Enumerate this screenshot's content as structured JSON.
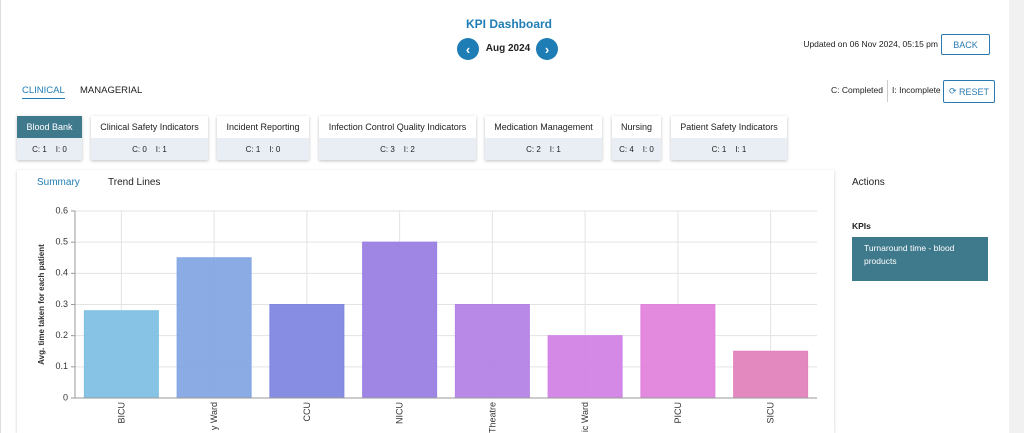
{
  "header": {
    "title": "KPI Dashboard",
    "period": "Aug 2024",
    "updated": "Updated on 06 Nov 2024, 05:15 pm",
    "back": "BACK"
  },
  "tabs": [
    "CLINICAL",
    "MANAGERIAL"
  ],
  "legend": {
    "completed": "C: Completed",
    "incomplete": "I: Incomplete",
    "reset": "RESET"
  },
  "cards": [
    {
      "label": "Blood Bank",
      "completed": "C: 1",
      "incomplete": "I: 0"
    },
    {
      "label": "Clinical Safety Indicators",
      "completed": "C: 0",
      "incomplete": "I: 1"
    },
    {
      "label": "Incident Reporting",
      "completed": "C: 1",
      "incomplete": "I: 0"
    },
    {
      "label": "Infection Control Quality Indicators",
      "completed": "C: 3",
      "incomplete": "I: 2"
    },
    {
      "label": "Medication Management",
      "completed": "C: 2",
      "incomplete": "I: 1"
    },
    {
      "label": "Nursing",
      "completed": "C: 4",
      "incomplete": "I: 0"
    },
    {
      "label": "Patient Safety Indicators",
      "completed": "C: 1",
      "incomplete": "I: 1"
    }
  ],
  "chart_tabs": [
    "Summary",
    "Trend Lines"
  ],
  "actions": {
    "title": "Actions",
    "section": "KPIs",
    "item": "Turnaround time - blood products"
  },
  "chart_data": {
    "type": "bar",
    "ylabel": "Avg. time taken for each patient",
    "categories": [
      "BICU",
      "y Ward",
      "CCU",
      "NICU",
      "Theatre",
      "ic Ward",
      "PICU",
      "SICU"
    ],
    "values": [
      0.28,
      0.45,
      0.3,
      0.5,
      0.3,
      0.2,
      0.3,
      0.15
    ],
    "colors": [
      "#7fc0e4",
      "#84a7e3",
      "#7f87e1",
      "#9a80e4",
      "#b583e6",
      "#d283e6",
      "#e283dc",
      "#e283bd"
    ],
    "ylim": [
      0,
      0.6
    ],
    "yticks": [
      0,
      0.1,
      0.2,
      0.3,
      0.4,
      0.5,
      0.6
    ],
    "grid": true
  }
}
